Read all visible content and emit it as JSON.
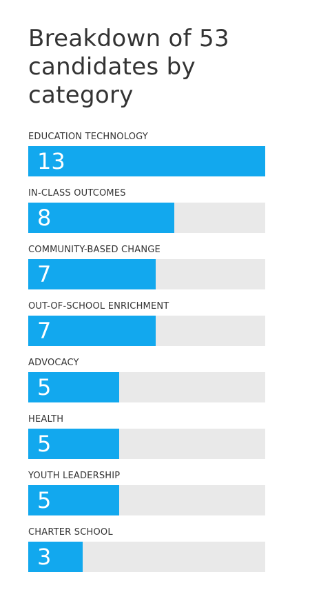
{
  "chart_data": {
    "type": "bar",
    "orientation": "horizontal",
    "title": "Breakdown of 53 candidates by category",
    "categories": [
      "EDUCATION TECHNOLOGY",
      "IN-CLASS OUTCOMES",
      "COMMUNITY-BASED CHANGE",
      "OUT-OF-SCHOOL ENRICHMENT",
      "ADVOCACY",
      "HEALTH",
      "YOUTH LEADERSHIP",
      "CHARTER SCHOOL"
    ],
    "values": [
      13,
      8,
      7,
      7,
      5,
      5,
      5,
      3
    ],
    "xlim": [
      0,
      13
    ],
    "xlabel": "",
    "ylabel": "",
    "grid": false,
    "legend": "none",
    "colors": {
      "bar": "#12a8ee",
      "track": "#e9e9e9",
      "value_text": "#ffffff",
      "text": "#333333"
    }
  }
}
